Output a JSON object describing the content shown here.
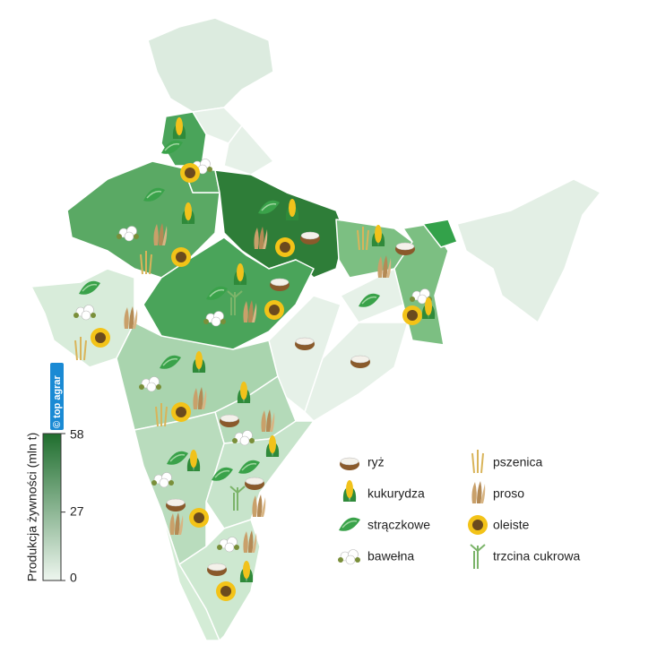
{
  "credit": "© top agrar",
  "colorbar": {
    "label": "Produkcja żywności (mln t)",
    "range": [
      0,
      58
    ],
    "ticks": [
      0,
      27,
      58
    ],
    "colors": [
      "#eef6ef",
      "#1f6e2e"
    ]
  },
  "legend": {
    "items": [
      "ryż",
      "kukurydza",
      "strączkowe",
      "bawełna",
      "pszenica",
      "proso",
      "oleiste",
      "trzcina cukrowa"
    ]
  }
}
